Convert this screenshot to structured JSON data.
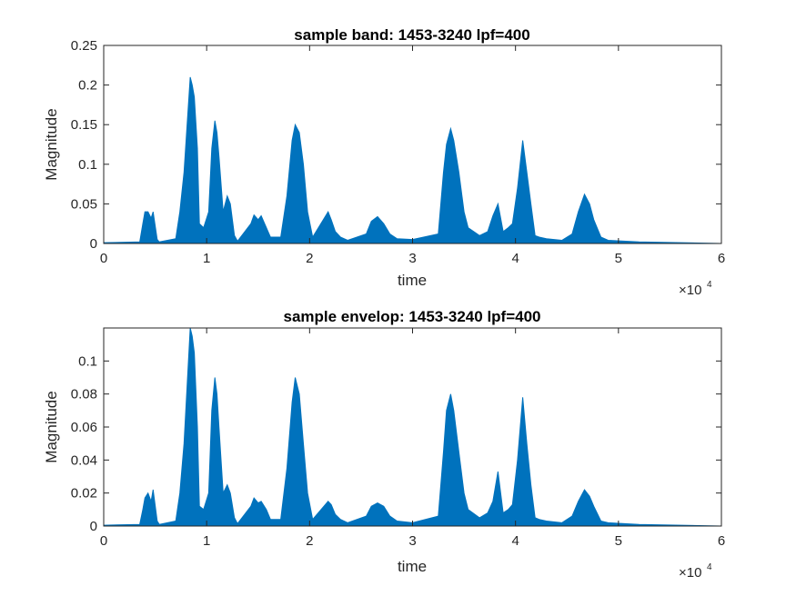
{
  "chart_data": [
    {
      "type": "area",
      "title": "sample band: 1453-3240 lpf=400",
      "xlabel": "time",
      "ylabel": "Magnitude",
      "xlim": [
        0,
        60000
      ],
      "ylim": [
        0,
        0.25
      ],
      "x_ticks": [
        0,
        1,
        2,
        3,
        4,
        5,
        6
      ],
      "y_ticks": [
        0,
        0.05,
        0.1,
        0.15,
        0.2,
        0.25
      ],
      "y_tick_labels": [
        "0",
        "0.05",
        "0.1",
        "0.15",
        "0.2",
        "0.25"
      ],
      "x_exponent": "×10",
      "x_exponent_power": "4",
      "color": "#0072BD",
      "grid": false,
      "series": [
        {
          "x": [
            0,
            3500,
            3800,
            4000,
            4300,
            4600,
            4800,
            5200,
            5400,
            7000,
            7400,
            7800,
            8100,
            8400,
            8600,
            8800,
            9100,
            9300,
            9700,
            10200,
            10500,
            10800,
            11000,
            11200,
            11600,
            12000,
            12300,
            12700,
            13000,
            14300,
            14600,
            15000,
            15300,
            15800,
            16200,
            17200,
            17800,
            18300,
            18600,
            19000,
            19400,
            19800,
            20300,
            21800,
            22100,
            22500,
            23000,
            23700,
            25500,
            26000,
            26600,
            27200,
            27800,
            28500,
            30000,
            32500,
            33000,
            33300,
            33700,
            34000,
            34500,
            35000,
            35400,
            36500,
            37300,
            37800,
            38300,
            38800,
            39300,
            39700,
            40200,
            40700,
            41100,
            41500,
            41900,
            42300,
            43000,
            44500,
            45500,
            46100,
            46700,
            47200,
            47600,
            48300,
            49000,
            52000,
            60000
          ],
          "values": [
            0.001,
            0.002,
            0.025,
            0.04,
            0.04,
            0.032,
            0.04,
            0.005,
            0.002,
            0.006,
            0.04,
            0.09,
            0.15,
            0.21,
            0.2,
            0.185,
            0.12,
            0.025,
            0.02,
            0.04,
            0.12,
            0.155,
            0.14,
            0.11,
            0.04,
            0.06,
            0.05,
            0.01,
            0.003,
            0.025,
            0.036,
            0.03,
            0.035,
            0.02,
            0.008,
            0.008,
            0.06,
            0.13,
            0.15,
            0.14,
            0.1,
            0.04,
            0.008,
            0.04,
            0.03,
            0.015,
            0.008,
            0.004,
            0.012,
            0.028,
            0.034,
            0.025,
            0.012,
            0.006,
            0.005,
            0.012,
            0.09,
            0.125,
            0.145,
            0.13,
            0.09,
            0.04,
            0.02,
            0.01,
            0.015,
            0.035,
            0.05,
            0.015,
            0.02,
            0.025,
            0.07,
            0.13,
            0.09,
            0.05,
            0.01,
            0.008,
            0.006,
            0.004,
            0.012,
            0.04,
            0.062,
            0.05,
            0.03,
            0.008,
            0.004,
            0.002,
            0.0
          ]
        }
      ]
    },
    {
      "type": "area",
      "title": "sample envelop: 1453-3240 lpf=400",
      "xlabel": "time",
      "ylabel": "Magnitude",
      "xlim": [
        0,
        60000
      ],
      "ylim": [
        0,
        0.12
      ],
      "x_ticks": [
        0,
        1,
        2,
        3,
        4,
        5,
        6
      ],
      "y_ticks": [
        0,
        0.02,
        0.04,
        0.06,
        0.08,
        0.1
      ],
      "y_tick_labels": [
        "0",
        "0.02",
        "0.04",
        "0.06",
        "0.08",
        "0.1"
      ],
      "x_exponent": "×10",
      "x_exponent_power": "4",
      "color": "#0072BD",
      "grid": false,
      "series": [
        {
          "x": [
            0,
            3500,
            3800,
            4000,
            4300,
            4600,
            4800,
            5200,
            5400,
            7000,
            7400,
            7800,
            8100,
            8400,
            8600,
            8800,
            9100,
            9300,
            9700,
            10200,
            10500,
            10800,
            11000,
            11200,
            11600,
            12000,
            12300,
            12700,
            13000,
            14300,
            14600,
            15000,
            15300,
            15800,
            16200,
            17200,
            17800,
            18300,
            18600,
            19000,
            19400,
            19800,
            20300,
            21800,
            22100,
            22500,
            23000,
            23700,
            25500,
            26000,
            26600,
            27200,
            27800,
            28500,
            30000,
            32500,
            33000,
            33300,
            33700,
            34000,
            34500,
            35000,
            35400,
            36500,
            37300,
            37800,
            38300,
            38800,
            39300,
            39700,
            40200,
            40700,
            41100,
            41500,
            41900,
            42300,
            43000,
            44500,
            45500,
            46100,
            46700,
            47200,
            47600,
            48300,
            49000,
            52000,
            60000
          ],
          "values": [
            0.0005,
            0.001,
            0.01,
            0.017,
            0.02,
            0.015,
            0.022,
            0.003,
            0.001,
            0.003,
            0.02,
            0.05,
            0.085,
            0.12,
            0.115,
            0.105,
            0.06,
            0.012,
            0.01,
            0.02,
            0.07,
            0.09,
            0.08,
            0.06,
            0.02,
            0.025,
            0.02,
            0.005,
            0.0015,
            0.012,
            0.017,
            0.014,
            0.015,
            0.01,
            0.004,
            0.004,
            0.035,
            0.075,
            0.09,
            0.08,
            0.05,
            0.02,
            0.004,
            0.015,
            0.013,
            0.007,
            0.004,
            0.002,
            0.006,
            0.012,
            0.014,
            0.012,
            0.006,
            0.003,
            0.002,
            0.006,
            0.045,
            0.07,
            0.08,
            0.07,
            0.045,
            0.02,
            0.01,
            0.005,
            0.008,
            0.015,
            0.033,
            0.008,
            0.01,
            0.013,
            0.04,
            0.078,
            0.05,
            0.025,
            0.005,
            0.004,
            0.003,
            0.002,
            0.006,
            0.015,
            0.022,
            0.018,
            0.012,
            0.003,
            0.002,
            0.001,
            0.0
          ]
        }
      ]
    }
  ]
}
